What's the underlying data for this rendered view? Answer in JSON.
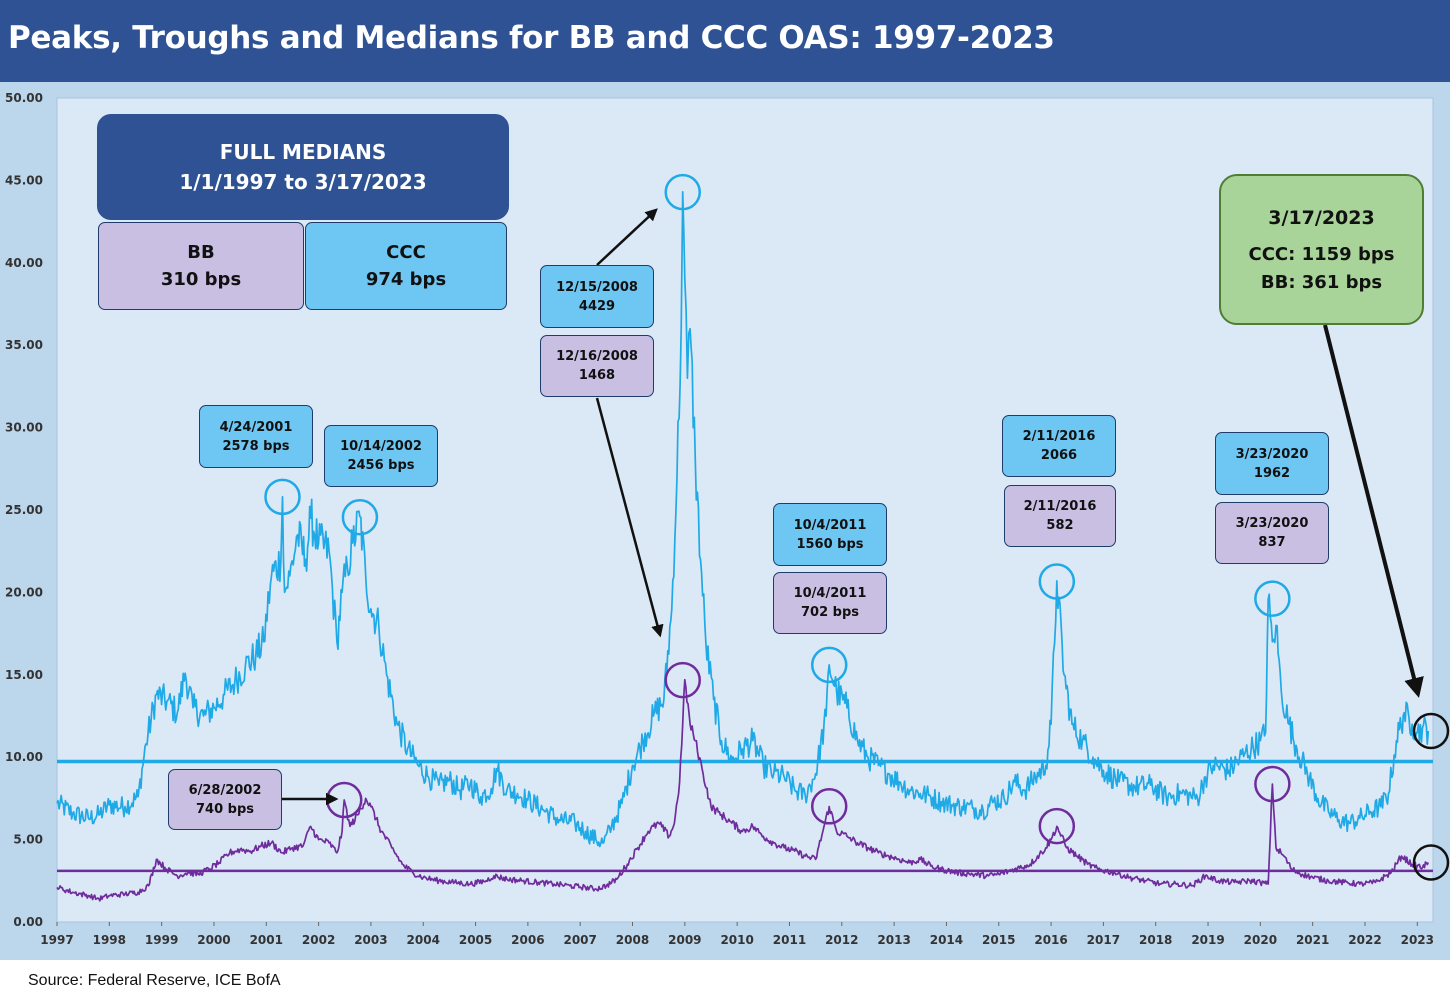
{
  "title": "Peaks, Troughs and Medians for BB and CCC OAS: 1997-2023",
  "source": "Source: Federal Reserve, ICE BofA",
  "colors": {
    "header": "#2e5294",
    "ccc": "#1fa9e6",
    "bb": "#6f2c9c",
    "plot_bg": "#dbe8f5",
    "frame": "#bcd6ec"
  },
  "chart_data": {
    "type": "line",
    "xlim": [
      1997,
      2023.3
    ],
    "ylim": [
      0,
      50
    ],
    "y_ticks": [
      "0.00",
      "5.00",
      "10.00",
      "15.00",
      "20.00",
      "25.00",
      "30.00",
      "35.00",
      "40.00",
      "45.00",
      "50.00"
    ],
    "x_ticks": [
      "1997",
      "1998",
      "1999",
      "2000",
      "2001",
      "2002",
      "2003",
      "2004",
      "2005",
      "2006",
      "2007",
      "2008",
      "2009",
      "2010",
      "2011",
      "2012",
      "2013",
      "2014",
      "2015",
      "2016",
      "2017",
      "2018",
      "2019",
      "2020",
      "2021",
      "2022",
      "2023"
    ],
    "medians": {
      "ccc": 9.74,
      "bb": 3.1
    },
    "series": [
      {
        "key": "ccc",
        "x": [
          1997.0,
          1997.3,
          1997.6,
          1997.8,
          1998.0,
          1998.3,
          1998.55,
          1998.7,
          1998.9,
          1999.1,
          1999.3,
          1999.45,
          1999.6,
          1999.8,
          2000.0,
          2000.2,
          2000.4,
          2000.6,
          2000.8,
          2000.95,
          2001.1,
          2001.28,
          2001.31,
          2001.35,
          2001.45,
          2001.6,
          2001.75,
          2001.85,
          2002.0,
          2002.2,
          2002.35,
          2002.45,
          2002.55,
          2002.65,
          2002.79,
          2002.9,
          2003.0,
          2003.15,
          2003.3,
          2003.5,
          2003.7,
          2003.9,
          2004.1,
          2004.3,
          2004.5,
          2004.7,
          2004.9,
          2005.1,
          2005.3,
          2005.4,
          2005.6,
          2005.8,
          2006.0,
          2006.3,
          2006.6,
          2006.9,
          2007.1,
          2007.3,
          2007.45,
          2007.6,
          2007.8,
          2008.0,
          2008.2,
          2008.4,
          2008.6,
          2008.75,
          2008.85,
          2008.93,
          2008.96,
          2009.0,
          2009.05,
          2009.1,
          2009.2,
          2009.3,
          2009.4,
          2009.55,
          2009.7,
          2009.9,
          2010.1,
          2010.3,
          2010.5,
          2010.7,
          2010.9,
          2011.1,
          2011.3,
          2011.5,
          2011.7,
          2011.76,
          2011.9,
          2012.1,
          2012.3,
          2012.5,
          2012.7,
          2012.9,
          2013.1,
          2013.3,
          2013.5,
          2013.7,
          2013.9,
          2014.1,
          2014.3,
          2014.5,
          2014.7,
          2014.9,
          2015.1,
          2015.3,
          2015.5,
          2015.7,
          2015.9,
          2016.0,
          2016.11,
          2016.25,
          2016.4,
          2016.6,
          2016.8,
          2017.0,
          2017.3,
          2017.6,
          2017.9,
          2018.2,
          2018.5,
          2018.8,
          2018.95,
          2019.1,
          2019.4,
          2019.7,
          2020.0,
          2020.1,
          2020.15,
          2020.23,
          2020.3,
          2020.4,
          2020.55,
          2020.7,
          2020.9,
          2021.1,
          2021.3,
          2021.5,
          2021.7,
          2021.9,
          2022.1,
          2022.3,
          2022.45,
          2022.6,
          2022.75,
          2022.9,
          2023.0,
          2023.1,
          2023.21
        ],
        "values": [
          7.2,
          6.6,
          6.3,
          6.5,
          7.1,
          7.0,
          7.6,
          10.8,
          13.8,
          13.4,
          12.7,
          15.1,
          13.0,
          12.5,
          13.0,
          13.8,
          14.6,
          15.5,
          16.2,
          17.0,
          21.0,
          22.0,
          25.8,
          20.0,
          21.0,
          23.5,
          22.0,
          24.5,
          23.0,
          22.5,
          17.0,
          20.0,
          21.5,
          23.0,
          24.6,
          21.0,
          19.0,
          18.0,
          15.0,
          12.0,
          10.5,
          9.5,
          8.8,
          8.3,
          8.6,
          8.0,
          8.4,
          7.6,
          8.1,
          9.3,
          8.0,
          7.8,
          7.4,
          6.8,
          6.2,
          6.0,
          5.5,
          5.0,
          4.8,
          5.8,
          7.2,
          9.5,
          11.0,
          12.5,
          13.5,
          19.0,
          27.0,
          36.0,
          44.3,
          39.0,
          33.0,
          36.0,
          28.0,
          22.0,
          17.0,
          13.5,
          11.0,
          9.8,
          10.5,
          11.0,
          9.5,
          9.0,
          8.8,
          8.0,
          7.7,
          9.0,
          12.5,
          15.6,
          14.0,
          13.0,
          11.0,
          10.0,
          9.5,
          9.0,
          8.5,
          8.0,
          7.8,
          7.6,
          7.3,
          7.1,
          7.0,
          6.9,
          6.8,
          7.3,
          7.5,
          8.5,
          8.0,
          8.8,
          9.5,
          12.0,
          20.7,
          15.0,
          12.0,
          11.0,
          10.0,
          9.2,
          8.5,
          8.2,
          8.3,
          7.6,
          7.8,
          7.5,
          8.8,
          9.5,
          9.2,
          10.2,
          11.0,
          11.5,
          19.6,
          17.0,
          18.0,
          14.0,
          12.0,
          10.5,
          9.0,
          7.5,
          6.7,
          6.2,
          6.0,
          6.3,
          6.7,
          7.0,
          7.8,
          11.0,
          12.7,
          12.0,
          11.5,
          11.8,
          11.59
        ]
      },
      {
        "key": "bb",
        "x": [
          1997.0,
          1997.3,
          1997.6,
          1997.8,
          1998.0,
          1998.3,
          1998.55,
          1998.75,
          1998.9,
          1999.1,
          1999.3,
          1999.5,
          1999.7,
          1999.9,
          2000.1,
          2000.3,
          2000.5,
          2000.7,
          2000.9,
          2001.1,
          2001.3,
          2001.5,
          2001.7,
          2001.85,
          2002.0,
          2002.2,
          2002.35,
          2002.45,
          2002.49,
          2002.6,
          2002.75,
          2002.9,
          2003.0,
          2003.2,
          2003.4,
          2003.6,
          2003.8,
          2004.0,
          2004.3,
          2004.6,
          2004.9,
          2005.2,
          2005.35,
          2005.6,
          2005.9,
          2006.2,
          2006.5,
          2006.8,
          2007.1,
          2007.3,
          2007.5,
          2007.7,
          2007.9,
          2008.1,
          2008.3,
          2008.5,
          2008.7,
          2008.8,
          2008.9,
          2008.96,
          2009.0,
          2009.1,
          2009.2,
          2009.35,
          2009.5,
          2009.7,
          2009.9,
          2010.1,
          2010.3,
          2010.5,
          2010.7,
          2010.9,
          2011.1,
          2011.3,
          2011.5,
          2011.76,
          2011.9,
          2012.1,
          2012.3,
          2012.5,
          2012.7,
          2012.9,
          2013.1,
          2013.3,
          2013.5,
          2013.7,
          2013.9,
          2014.2,
          2014.5,
          2014.8,
          2015.0,
          2015.3,
          2015.6,
          2015.9,
          2016.0,
          2016.11,
          2016.3,
          2016.5,
          2016.7,
          2016.9,
          2017.2,
          2017.5,
          2017.8,
          2018.1,
          2018.4,
          2018.7,
          2018.95,
          2019.2,
          2019.5,
          2019.8,
          2020.0,
          2020.15,
          2020.23,
          2020.3,
          2020.45,
          2020.6,
          2020.8,
          2021.0,
          2021.3,
          2021.6,
          2021.9,
          2022.2,
          2022.5,
          2022.7,
          2022.9,
          2023.0,
          2023.1,
          2023.21
        ],
        "values": [
          2.1,
          1.8,
          1.6,
          1.4,
          1.6,
          1.7,
          1.8,
          2.2,
          3.8,
          3.2,
          2.8,
          3.0,
          2.9,
          3.2,
          3.6,
          4.2,
          4.4,
          4.3,
          4.6,
          4.8,
          4.2,
          4.5,
          4.6,
          5.8,
          5.0,
          4.8,
          4.2,
          5.5,
          7.4,
          5.8,
          6.5,
          7.5,
          7.0,
          5.5,
          4.5,
          3.5,
          3.0,
          2.7,
          2.5,
          2.4,
          2.3,
          2.5,
          2.8,
          2.6,
          2.5,
          2.4,
          2.3,
          2.2,
          2.1,
          2.0,
          2.2,
          2.6,
          3.5,
          4.5,
          5.5,
          6.0,
          5.2,
          6.0,
          8.5,
          12.0,
          14.7,
          12.0,
          11.0,
          9.0,
          7.0,
          6.5,
          6.0,
          5.5,
          5.8,
          5.2,
          4.8,
          4.5,
          4.3,
          4.0,
          3.8,
          7.0,
          5.5,
          5.2,
          4.8,
          4.5,
          4.2,
          4.0,
          3.8,
          3.6,
          3.8,
          3.4,
          3.2,
          3.0,
          2.9,
          2.8,
          2.9,
          3.2,
          3.5,
          4.5,
          5.0,
          5.8,
          4.5,
          4.0,
          3.5,
          3.2,
          3.0,
          2.7,
          2.5,
          2.3,
          2.3,
          2.2,
          2.8,
          2.5,
          2.4,
          2.5,
          2.4,
          2.3,
          8.37,
          4.5,
          4.0,
          3.2,
          2.9,
          2.7,
          2.5,
          2.4,
          2.3,
          2.4,
          3.0,
          4.0,
          3.5,
          3.4,
          3.3,
          3.61
        ]
      }
    ],
    "circles": [
      {
        "series": "ccc",
        "x": 2001.31,
        "y": 25.8
      },
      {
        "series": "ccc",
        "x": 2002.79,
        "y": 24.56
      },
      {
        "series": "ccc",
        "x": 2008.96,
        "y": 44.29
      },
      {
        "series": "ccc",
        "x": 2011.76,
        "y": 15.6
      },
      {
        "series": "ccc",
        "x": 2016.11,
        "y": 20.66
      },
      {
        "series": "ccc",
        "x": 2020.23,
        "y": 19.62
      },
      {
        "series": "bb",
        "x": 2002.49,
        "y": 7.4
      },
      {
        "series": "bb",
        "x": 2008.96,
        "y": 14.68
      },
      {
        "series": "bb",
        "x": 2011.76,
        "y": 7.02
      },
      {
        "series": "bb",
        "x": 2016.11,
        "y": 5.82
      },
      {
        "series": "bb",
        "x": 2020.23,
        "y": 8.37
      },
      {
        "series": "latest",
        "x": 2023.21,
        "y": 11.59
      },
      {
        "series": "latest",
        "x": 2023.21,
        "y": 3.61
      }
    ]
  },
  "labels": {
    "medians_title_1": "FULL MEDIANS",
    "medians_title_2": "1/1/1997 to 3/17/2023",
    "bb_label": "BB",
    "bb_value": "310 bps",
    "ccc_label": "CCC",
    "ccc_value": "974 bps",
    "ccc_2001_date": "4/24/2001",
    "ccc_2001_value": "2578 bps",
    "ccc_2002_date": "10/14/2002",
    "ccc_2002_value": "2456 bps",
    "bb_2002_date": "6/28/2002",
    "bb_2002_value": "740 bps",
    "ccc_2008_date": "12/15/2008",
    "ccc_2008_value": "4429",
    "bb_2008_date": "12/16/2008",
    "bb_2008_value": "1468",
    "ccc_2011_date": "10/4/2011",
    "ccc_2011_value": "1560 bps",
    "bb_2011_date": "10/4/2011",
    "bb_2011_value": "702 bps",
    "ccc_2016_date": "2/11/2016",
    "ccc_2016_value": "2066",
    "bb_2016_date": "2/11/2016",
    "bb_2016_value": "582",
    "ccc_2020_date": "3/23/2020",
    "ccc_2020_value": "1962",
    "bb_2020_date": "3/23/2020",
    "bb_2020_value": "837",
    "latest_date": "3/17/2023",
    "latest_ccc": "CCC: 1159 bps",
    "latest_bb": "BB: 361 bps"
  }
}
